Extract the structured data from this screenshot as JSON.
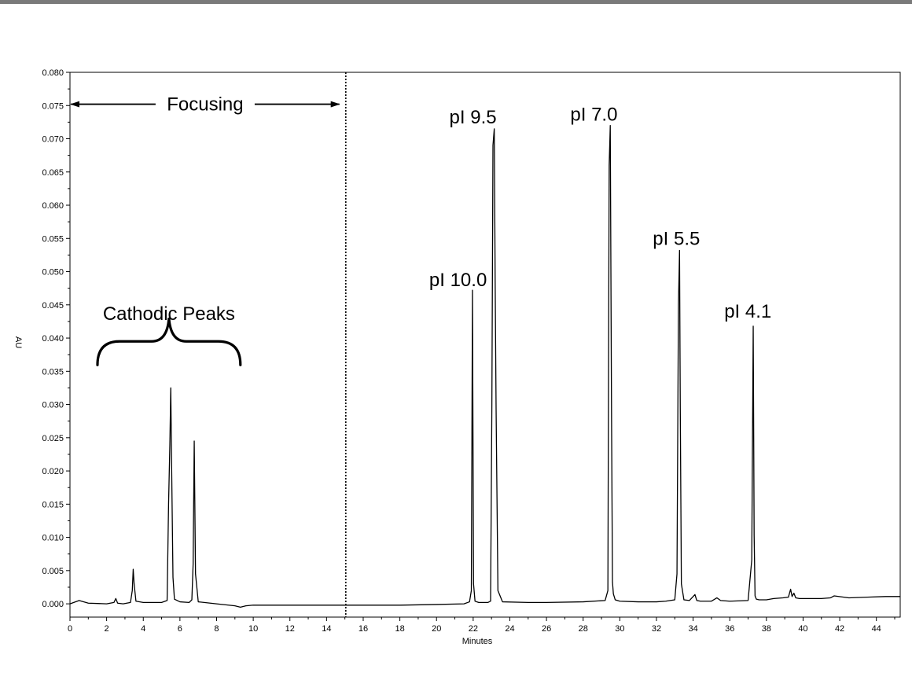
{
  "chart_data": {
    "type": "line",
    "title": "",
    "xlabel": "Minutes",
    "ylabel": "AU",
    "xlim": [
      0,
      45.3
    ],
    "ylim": [
      -0.002,
      0.08
    ],
    "x_ticks": [
      0,
      2,
      4,
      6,
      8,
      10,
      12,
      14,
      16,
      18,
      20,
      22,
      24,
      26,
      28,
      30,
      32,
      34,
      36,
      38,
      40,
      42,
      44
    ],
    "y_ticks": [
      "0.000",
      "0.005",
      "0.010",
      "0.015",
      "0.020",
      "0.025",
      "0.030",
      "0.035",
      "0.040",
      "0.045",
      "0.050",
      "0.055",
      "0.060",
      "0.065",
      "0.070",
      "0.075",
      "0.080"
    ],
    "grid": false,
    "series": [
      {
        "x": [
          0,
          0.5,
          1.0,
          2.0,
          2.4,
          2.5,
          2.6,
          2.9,
          3.3,
          3.4,
          3.45,
          3.5,
          3.6,
          4.0,
          5.0,
          5.3,
          5.38,
          5.45,
          5.5,
          5.55,
          5.62,
          5.7,
          6.0,
          6.5,
          6.65,
          6.72,
          6.78,
          6.85,
          7.0,
          8.0,
          9.0,
          9.3,
          9.6,
          10,
          12,
          14,
          15,
          16,
          18,
          20,
          21.5,
          21.8,
          21.9,
          21.96,
          22.02,
          22.1,
          22.3,
          22.8,
          22.95,
          23.02,
          23.08,
          23.15,
          23.2,
          23.25,
          23.35,
          23.6,
          25,
          26,
          28,
          29.2,
          29.35,
          29.42,
          29.48,
          29.55,
          29.6,
          29.65,
          29.75,
          30,
          31,
          32,
          32.5,
          33.0,
          33.12,
          33.2,
          33.26,
          33.3,
          33.36,
          33.5,
          33.8,
          34.1,
          34.2,
          34.4,
          35,
          35.3,
          35.5,
          36,
          37.0,
          37.2,
          37.28,
          37.33,
          37.38,
          37.45,
          37.6,
          38,
          38.4,
          38.9,
          39.2,
          39.32,
          39.4,
          39.5,
          39.6,
          39.8,
          40.2,
          41.0,
          41.5,
          41.7,
          42.5,
          43.5,
          44.5,
          45.3
        ],
        "y": [
          0.0,
          0.0005,
          0.0001,
          0.0,
          0.0002,
          0.0008,
          0.0001,
          0.0,
          0.0002,
          0.002,
          0.0052,
          0.003,
          0.0004,
          0.0002,
          0.0002,
          0.0005,
          0.015,
          0.024,
          0.0325,
          0.02,
          0.004,
          0.0007,
          0.0003,
          0.0002,
          0.0006,
          0.006,
          0.0245,
          0.0045,
          0.0003,
          0.0,
          -0.0003,
          -0.0005,
          -0.0003,
          -0.0002,
          -0.0002,
          -0.0002,
          -0.0002,
          -0.0002,
          -0.0002,
          -0.0001,
          0.0,
          0.0003,
          0.002,
          0.0472,
          0.003,
          0.0004,
          0.0002,
          0.0002,
          0.0004,
          0.03,
          0.069,
          0.0715,
          0.0485,
          0.0295,
          0.002,
          0.0003,
          0.0002,
          0.0002,
          0.0003,
          0.0005,
          0.002,
          0.066,
          0.072,
          0.028,
          0.0033,
          0.0015,
          0.0006,
          0.0004,
          0.0003,
          0.0003,
          0.0004,
          0.0006,
          0.0045,
          0.045,
          0.0532,
          0.0295,
          0.003,
          0.0006,
          0.0005,
          0.0014,
          0.0005,
          0.0004,
          0.0004,
          0.0009,
          0.0005,
          0.0004,
          0.0005,
          0.0066,
          0.0418,
          0.0103,
          0.0012,
          0.0007,
          0.0006,
          0.0006,
          0.0008,
          0.0009,
          0.001,
          0.0022,
          0.0011,
          0.0016,
          0.0009,
          0.0008,
          0.0008,
          0.0008,
          0.0009,
          0.0012,
          0.0009,
          0.001,
          0.0011,
          0.0011
        ]
      }
    ],
    "focus_boundary_x": 15.05,
    "annotations": [
      {
        "id": "focusing",
        "text": "Focusing",
        "x1": 0.05,
        "x2": 14.7,
        "y": 0.0752
      },
      {
        "id": "cathodic",
        "text": "Cathodic Peaks",
        "x": 5.4,
        "y": 0.0427,
        "brace_x1": 1.5,
        "brace_x2": 9.3,
        "brace_y": 0.0395
      },
      {
        "id": "pi-10-0",
        "text": "pI 10.0",
        "x": 19.6,
        "y": 0.0478
      },
      {
        "id": "pi-9-5",
        "text": "pI 9.5",
        "x": 20.7,
        "y": 0.0723
      },
      {
        "id": "pi-7-0",
        "text": "pI 7.0",
        "x": 27.3,
        "y": 0.0727
      },
      {
        "id": "pi-5-5",
        "text": "pI 5.5",
        "x": 31.8,
        "y": 0.054
      },
      {
        "id": "pi-4-1",
        "text": "pI 4.1",
        "x": 35.7,
        "y": 0.0431
      }
    ]
  }
}
